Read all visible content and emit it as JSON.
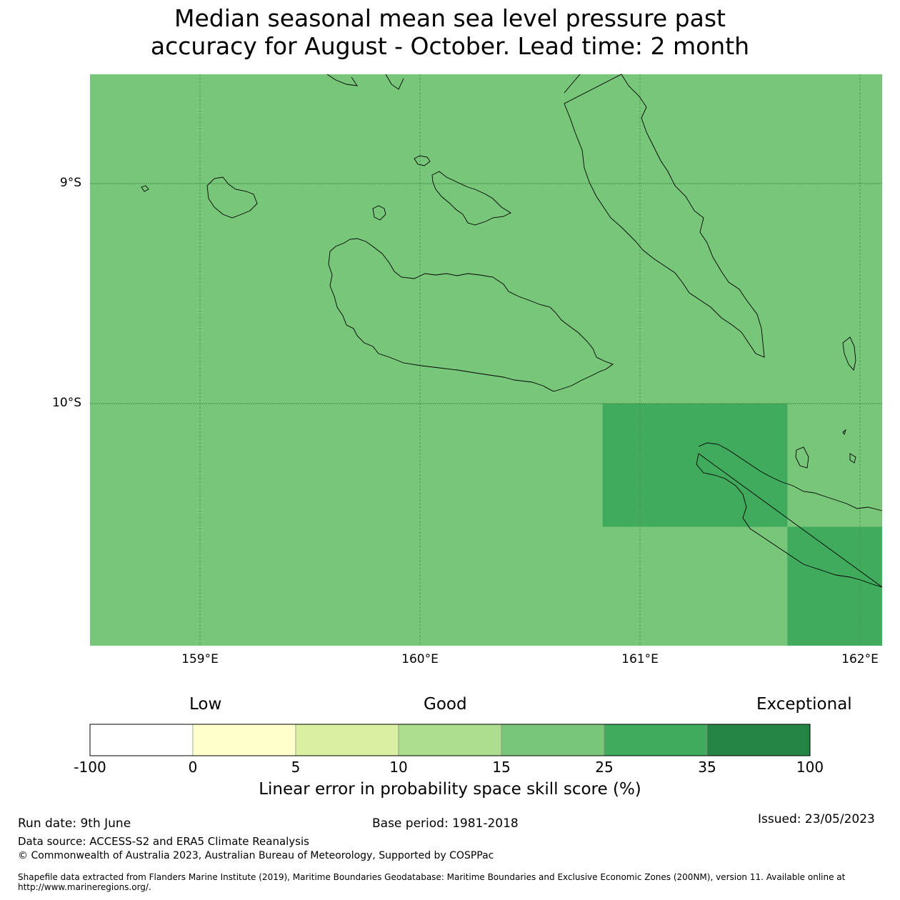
{
  "title": {
    "line1": "Median seasonal mean sea level pressure past",
    "line2": "accuracy for August - October. Lead time: 2 month"
  },
  "map": {
    "background_color": "#78c679",
    "high_color": "#41ab5d",
    "lat_labels": [
      "9°S",
      "10°S"
    ],
    "lon_labels": [
      "159°E",
      "160°E",
      "161°E",
      "162°E"
    ],
    "cells": [
      {
        "lon_range": [
          160.83,
          161.67
        ],
        "lat_range": [
          -10.56,
          -10.0
        ],
        "category": "25-35"
      },
      {
        "lon_range": [
          161.67,
          162.1
        ],
        "lat_range": [
          -11.1,
          -10.56
        ],
        "category": "25-35"
      }
    ]
  },
  "colorbar": {
    "category_labels": [
      "Low",
      "Good",
      "Exceptional"
    ],
    "boundaries": [
      "-100",
      "0",
      "5",
      "10",
      "15",
      "25",
      "35",
      "100"
    ],
    "colors": [
      "#ffffff",
      "#ffffcc",
      "#d9f0a3",
      "#addd8e",
      "#78c679",
      "#41ab5d",
      "#238443"
    ],
    "title": "Linear error in probability space skill score (%)"
  },
  "footer": {
    "run_date": "Run date: 9th June",
    "base_period": "Base period: 1981-2018",
    "issued": "Issued: 23/05/2023",
    "data_source": "Data source: ACCESS-S2 and ERA5 Climate Reanalysis",
    "copyright": "© Commonwealth of Australia 2023, Australian Bureau of Meteorology, Supported by COSPPac",
    "shapefile": "Shapefile data extracted from Flanders Marine Institute (2019), Maritime Boundaries Geodatabase: Maritime Boundaries and Exclusive Economic Zones (200NM), version 11. Available online at http://www.marineregions.org/."
  }
}
